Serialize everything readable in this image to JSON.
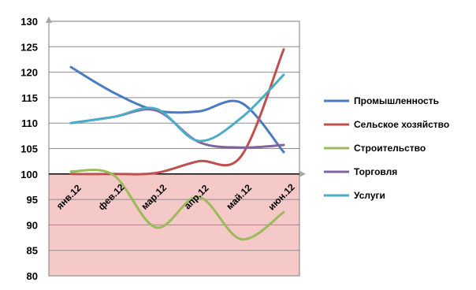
{
  "colors": {
    "title": "#1f4e9e",
    "plot_border": "#7f7f7f",
    "gridline": "#8c8c8c",
    "below_baseline_fill": "#f6c9c9",
    "axis_arrow": "#a6a6a6"
  },
  "chart_data": {
    "type": "line",
    "title": "",
    "xlabel": "",
    "ylabel": "",
    "ylim": [
      80,
      130
    ],
    "yticks": [
      "80",
      "85",
      "90",
      "95",
      "100",
      "105",
      "110",
      "115",
      "120",
      "125",
      "130"
    ],
    "baseline": 100,
    "shaded_region": {
      "from": 80,
      "to": 100,
      "color": "#f6c9c9"
    },
    "grid": true,
    "smooth": true,
    "legend_position": "right",
    "categories": [
      "янв.12",
      "фев.12",
      "мар.12",
      "апр.12",
      "май.12",
      "июн.12"
    ],
    "series": [
      {
        "name": "Промышленность",
        "color": "#4a7bc2",
        "values": [
          121,
          116,
          112.5,
          112.3,
          114,
          104.3
        ]
      },
      {
        "name": "Сельское хозяйство",
        "color": "#c0504d",
        "values": [
          100,
          100,
          100.2,
          102.5,
          103.5,
          124.5
        ]
      },
      {
        "name": "Строительство",
        "color": "#9bbb59",
        "values": [
          100.5,
          99.8,
          89.5,
          95.5,
          87.2,
          92.5
        ]
      },
      {
        "name": "Торговля",
        "color": "#8064a2",
        "values": [
          110,
          111.2,
          112.5,
          106.3,
          105.2,
          105.7
        ]
      },
      {
        "name": "Услуги",
        "color": "#4bacc6",
        "values": [
          110,
          111.2,
          112.8,
          106.5,
          111,
          119.5
        ]
      }
    ]
  }
}
